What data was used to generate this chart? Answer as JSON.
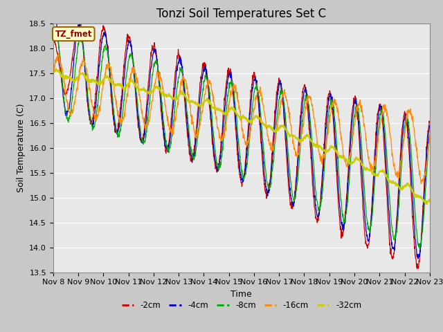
{
  "title": "Tonzi Soil Temperatures Set C",
  "xlabel": "Time",
  "ylabel": "Soil Temperature (C)",
  "ylim": [
    13.5,
    18.5
  ],
  "colors": {
    "-2cm": "#cc0000",
    "-4cm": "#0000cc",
    "-8cm": "#00aa00",
    "-16cm": "#ff8800",
    "-32cm": "#cccc00"
  },
  "annotation_text": "TZ_fmet",
  "annotation_box_color": "#ffffcc",
  "annotation_border_color": "#996600",
  "plot_bg_color": "#e8e8e8",
  "fig_bg_color": "#c8c8c8",
  "grid_color": "#ffffff",
  "title_fontsize": 12,
  "axis_label_fontsize": 9,
  "tick_label_fontsize": 8,
  "x_tick_labels": [
    "Nov 8",
    "Nov 9",
    "Nov 10",
    "Nov 11",
    "Nov 12",
    "Nov 13",
    "Nov 14",
    "Nov 15",
    "Nov 16",
    "Nov 17",
    "Nov 18",
    "Nov 19",
    "Nov 20",
    "Nov 21",
    "Nov 22",
    "Nov 23"
  ]
}
